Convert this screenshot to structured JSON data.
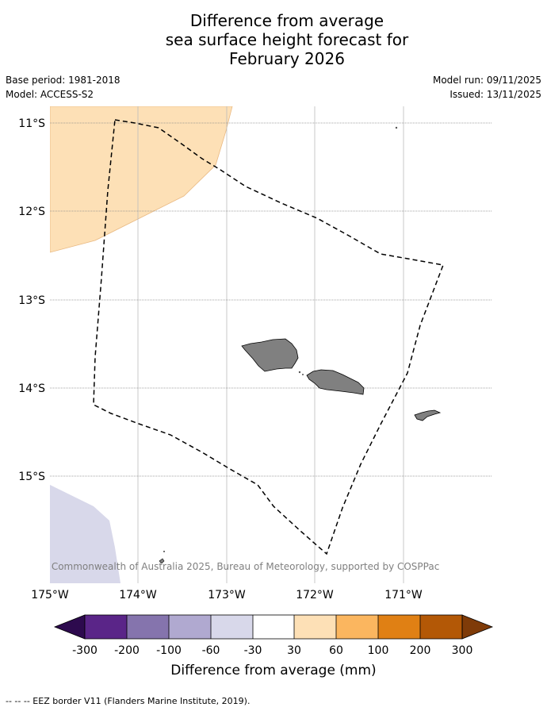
{
  "title": {
    "line1": "Difference from average",
    "line2": "sea surface height forecast for",
    "line3": "February 2026"
  },
  "meta": {
    "base_period": "Base period: 1981-2018",
    "model": "Model: ACCESS-S2",
    "model_run": "Model run: 09/11/2025",
    "issued": "Issued: 13/11/2025"
  },
  "map": {
    "lat_labels": [
      "11°S",
      "12°S",
      "13°S",
      "14°S",
      "15°S"
    ],
    "lon_labels": [
      "175°W",
      "174°W",
      "173°W",
      "172°W",
      "171°W"
    ],
    "copyright": "© Commonwealth of Australia 2025, Bureau of Meteorology, supported by COSPPac",
    "colors": {
      "land": "#808080",
      "light_orange_anomaly": "#fde0b6",
      "light_purple_anomaly": "#d8d8ea",
      "eez_border": "#000000"
    }
  },
  "colorbar": {
    "ticks": [
      "-300",
      "-200",
      "-100",
      "-60",
      "-30",
      "30",
      "60",
      "100",
      "200",
      "300"
    ],
    "label": "Difference from average (mm)",
    "colors": [
      "#2d0a4e",
      "#5a2588",
      "#8574ad",
      "#b0a9d0",
      "#d8d8ea",
      "#ffffff",
      "#fde0b6",
      "#fbb65f",
      "#e08014",
      "#b35806",
      "#7f3b08"
    ]
  },
  "footnote": "--  --  -- EEZ border V11 (Flanders Marine Institute, 2019)."
}
